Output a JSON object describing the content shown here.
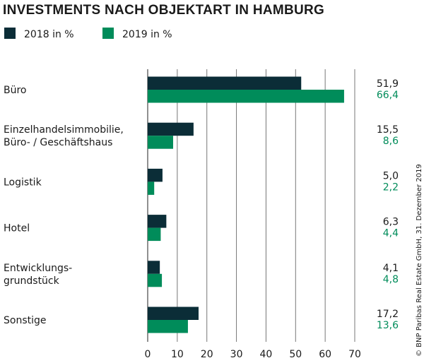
{
  "chart_data": {
    "type": "bar",
    "orientation": "horizontal",
    "title": "INVESTMENTS NACH OBJEKTART IN HAMBURG",
    "categories": [
      [
        "Büro"
      ],
      [
        "Einzelhandelsimmobilie,",
        "Büro- / Geschäftshaus"
      ],
      [
        "Logistik"
      ],
      [
        "Hotel"
      ],
      [
        "Entwicklungs-",
        "grundstück"
      ],
      [
        "Sonstige"
      ]
    ],
    "series": [
      {
        "name": "2018 in %",
        "color": "#0b2d37",
        "values": [
          51.9,
          15.5,
          5.0,
          6.3,
          4.1,
          17.2
        ],
        "labels": [
          "51,9",
          "15,5",
          "5,0",
          "6,3",
          "4,1",
          "17,2"
        ]
      },
      {
        "name": "2019 in %",
        "color": "#008c5a",
        "values": [
          66.4,
          8.6,
          2.2,
          4.4,
          4.8,
          13.6
        ],
        "labels": [
          "66,4",
          "8,6",
          "2,2",
          "4,4",
          "4,8",
          "13,6"
        ]
      }
    ],
    "xlim": [
      0,
      70
    ],
    "xticks": [
      "0",
      "10",
      "20",
      "30",
      "40",
      "50",
      "60",
      "70"
    ],
    "grid": true,
    "legend": "top-left"
  },
  "copyright": "© BNP Paribas Real Estate GmbH, 31. Dezember 2019"
}
